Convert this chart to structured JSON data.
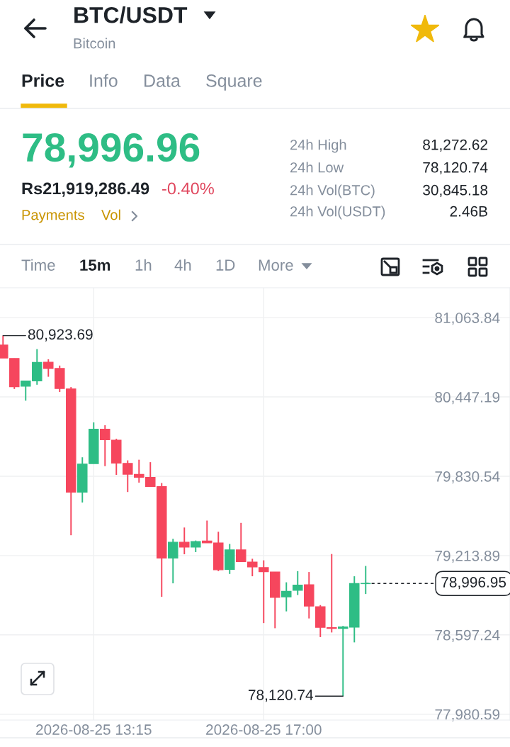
{
  "chart_data": {
    "type": "candlestick",
    "title": "BTC/USDT",
    "subtitle": "Bitcoin",
    "x": [
      "2026-08-25T11:15",
      "2026-08-25T11:30",
      "2026-08-25T11:45",
      "2026-08-25T12:00",
      "2026-08-25T12:15",
      "2026-08-25T12:30",
      "2026-08-25T12:45",
      "2026-08-25T13:00",
      "2026-08-25T13:15",
      "2026-08-25T13:30",
      "2026-08-25T13:45",
      "2026-08-25T14:00",
      "2026-08-25T14:15",
      "2026-08-25T14:30",
      "2026-08-25T14:45",
      "2026-08-25T15:00",
      "2026-08-25T15:15",
      "2026-08-25T15:30",
      "2026-08-25T15:45",
      "2026-08-25T16:00",
      "2026-08-25T16:15",
      "2026-08-25T16:30",
      "2026-08-25T16:45",
      "2026-08-25T17:00",
      "2026-08-25T17:15",
      "2026-08-25T17:30",
      "2026-08-25T17:45",
      "2026-08-25T18:00",
      "2026-08-25T18:15",
      "2026-08-25T18:30",
      "2026-08-25T18:45",
      "2026-08-25T19:00",
      "2026-08-25T19:15"
    ],
    "ohlc": [
      [
        80850,
        80923.69,
        80750,
        80750
      ],
      [
        80746,
        80746,
        80509,
        80527
      ],
      [
        80531,
        80571,
        80418,
        80571
      ],
      [
        80573,
        80819,
        80542,
        80715
      ],
      [
        80717,
        80740,
        80604,
        80669
      ],
      [
        80668,
        80691,
        80486,
        80513
      ],
      [
        80509,
        80524,
        79372,
        79708
      ],
      [
        79708,
        79978,
        79626,
        79925
      ],
      [
        79929,
        80249,
        79929,
        80196
      ],
      [
        80196,
        80227,
        79909,
        80115
      ],
      [
        80111,
        80122,
        79841,
        79934
      ],
      [
        79930,
        79954,
        79708,
        79847
      ],
      [
        79845,
        79959,
        79781,
        79823
      ],
      [
        79821,
        79940,
        79752,
        79752
      ],
      [
        79749,
        79778,
        78893,
        79195
      ],
      [
        79195,
        79344,
        78998,
        79317
      ],
      [
        79317,
        79432,
        79224,
        79280
      ],
      [
        79280,
        79331,
        79241,
        79323
      ],
      [
        79326,
        79486,
        79313,
        79313
      ],
      [
        79312,
        79399,
        79093,
        79104
      ],
      [
        79107,
        79304,
        79071,
        79257
      ],
      [
        79257,
        79468,
        79167,
        79167
      ],
      [
        79162,
        79189,
        79053,
        79126
      ],
      [
        79120,
        79177,
        78689,
        79089
      ],
      [
        79086,
        79086,
        78649,
        78889
      ],
      [
        78893,
        79006,
        78780,
        78935
      ],
      [
        78944,
        79093,
        78907,
        78984
      ],
      [
        78986,
        79086,
        78725,
        78822
      ],
      [
        78816,
        78829,
        78580,
        78656
      ],
      [
        78653,
        79226,
        78616,
        78648
      ],
      [
        78648,
        78667,
        78120.74,
        78658
      ],
      [
        78658,
        79053,
        78539,
        78996
      ],
      [
        78996,
        79133,
        78915,
        78996.95
      ]
    ],
    "colors": [
      "#f6465d",
      "#f6465d",
      "#2ebd85",
      "#2ebd85",
      "#f6465d",
      "#f6465d",
      "#f6465d",
      "#2ebd85",
      "#2ebd85",
      "#f6465d",
      "#f6465d",
      "#f6465d",
      "#f6465d",
      "#f6465d",
      "#f6465d",
      "#2ebd85",
      "#f6465d",
      "#2ebd85",
      "#f6465d",
      "#f6465d",
      "#2ebd85",
      "#f6465d",
      "#f6465d",
      "#f6465d",
      "#f6465d",
      "#2ebd85",
      "#2ebd85",
      "#f6465d",
      "#f6465d",
      "#f6465d",
      "#2ebd85",
      "#2ebd85",
      "#2ebd85"
    ],
    "xlim": [
      "2026-08-25T11:11",
      "2026-08-25T22:26"
    ],
    "xticks": [
      {
        "value": "2026-08-25T13:15",
        "label": "2026-08-25 13:15"
      },
      {
        "value": "2026-08-25T17:00",
        "label": "2026-08-25 17:00"
      }
    ],
    "ylim": [
      77935,
      81296
    ],
    "yticks": [
      {
        "value": 77980.59,
        "label": "77,980.59"
      },
      {
        "value": 78597.24,
        "label": "78,597.24"
      },
      {
        "value": 79213.89,
        "label": "79,213.89"
      },
      {
        "value": 79830.54,
        "label": "79,830.54"
      },
      {
        "value": 80447.19,
        "label": "80,447.19"
      },
      {
        "value": 81063.84,
        "label": "81,063.84"
      }
    ],
    "grid": true,
    "ref_lines": [
      {
        "axis": "y",
        "value": 78996.95,
        "label": "78,996.95",
        "line_style": "dashed",
        "color": "#1e2329"
      }
    ],
    "annotations": [
      "Price",
      "Info",
      "Data",
      "Square",
      "78,996.96",
      "Rs21,919,286.49",
      "-0.40%",
      "Payments",
      "Vol",
      "24h High",
      "81,272.62",
      "24h Low",
      "78,120.74",
      "24h Vol(BTC)",
      "30,845.18",
      "24h Vol(USDT)",
      "2.46B",
      "Time",
      "15m",
      "1h",
      "4h",
      "1D",
      "More",
      {
        "text": "80,923.69",
        "x": "2026-08-25T11:15",
        "y": 80923.69
      },
      {
        "text": "78,120.74",
        "x": "2026-08-25T18:45",
        "y": 78120.74
      }
    ]
  }
}
